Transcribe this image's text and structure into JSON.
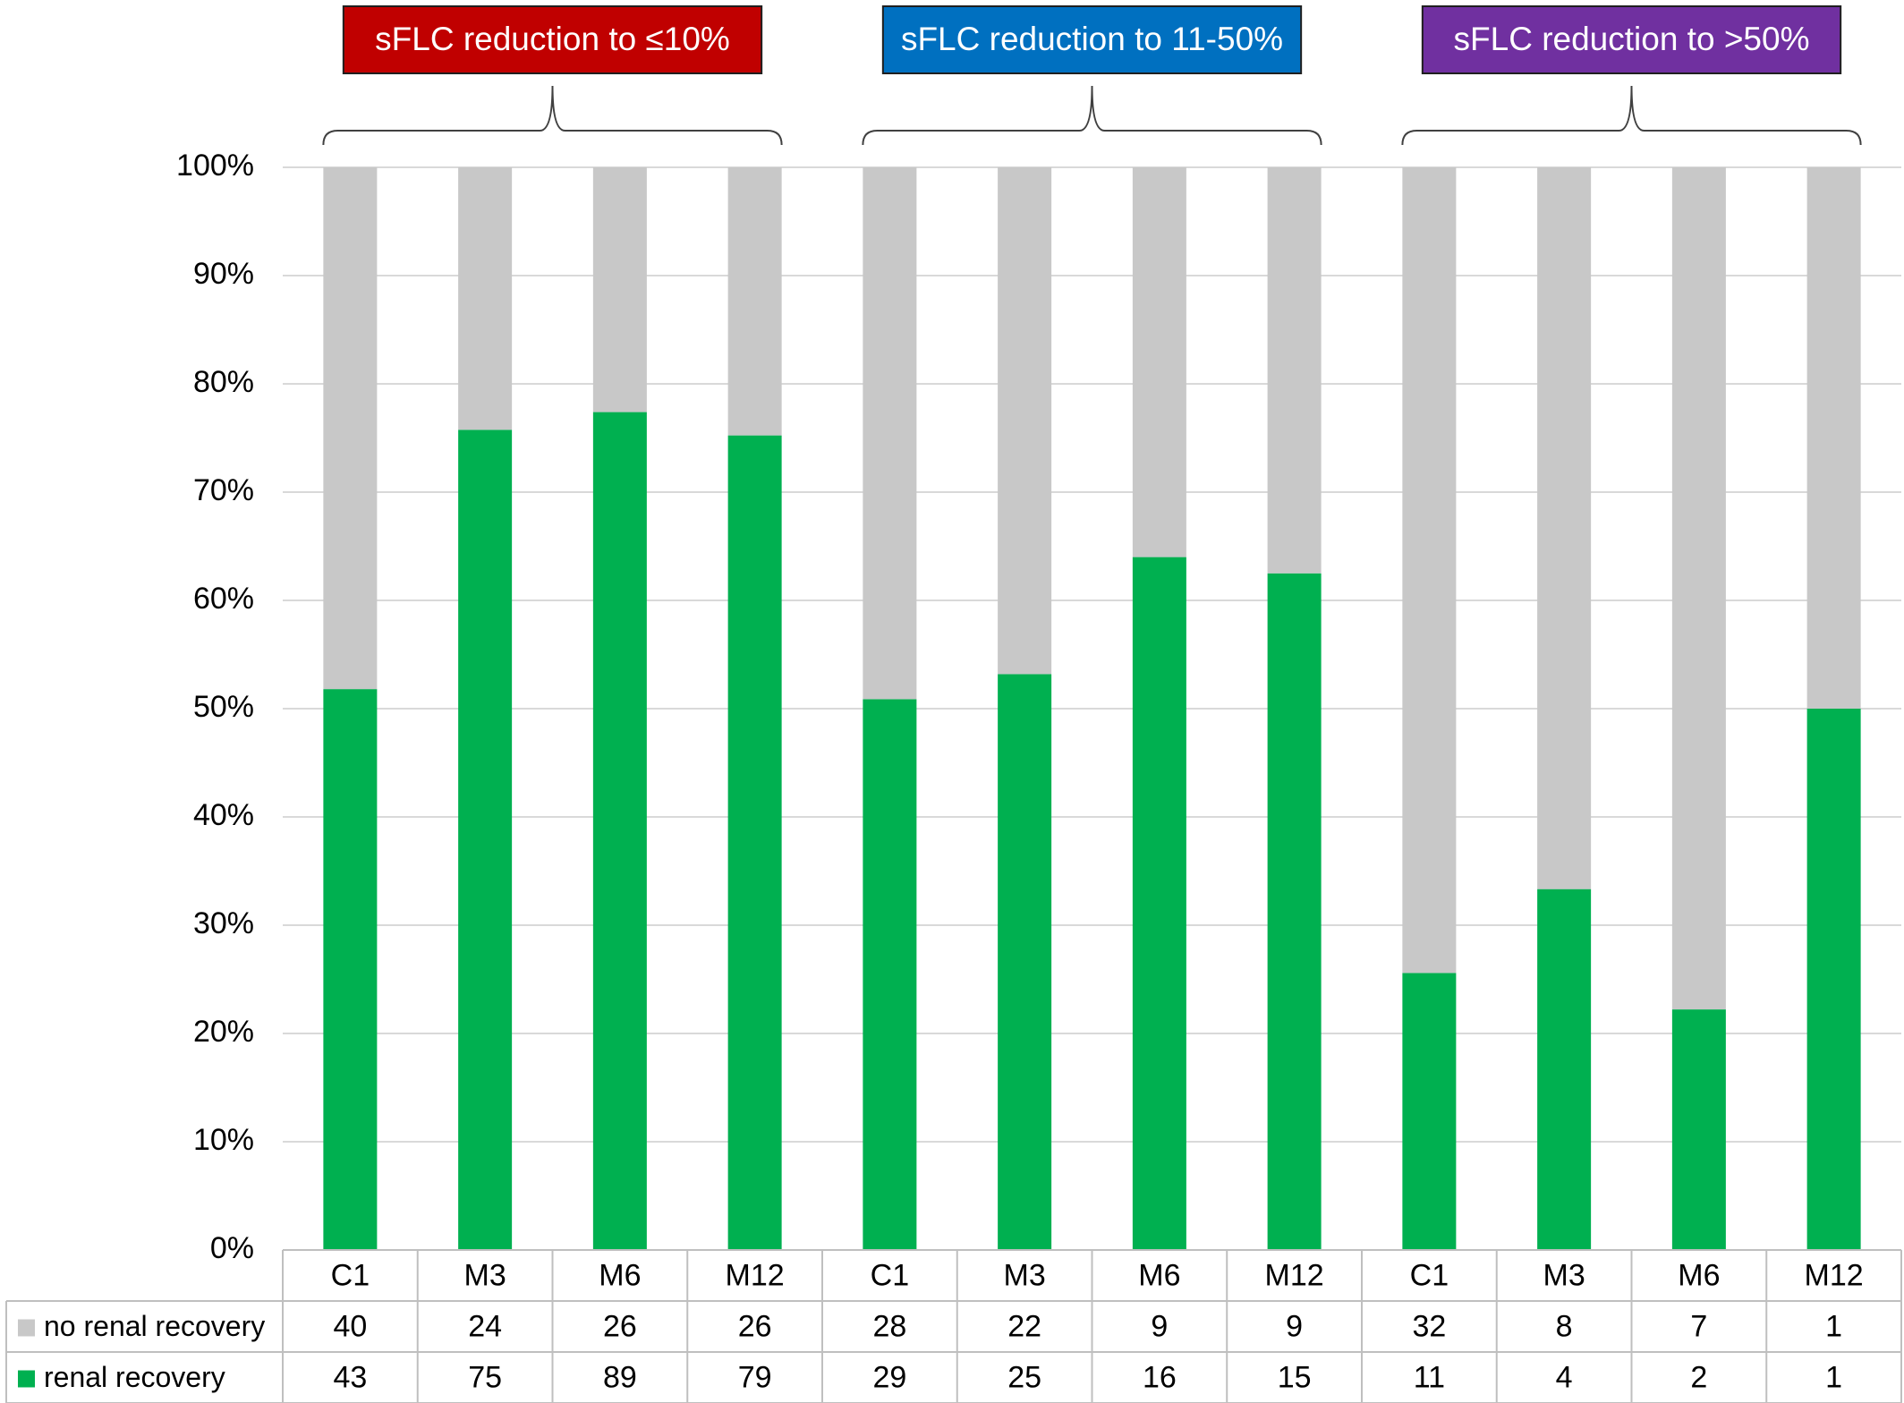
{
  "chart_data": {
    "type": "bar",
    "stacked": "percent",
    "categories": [
      "C1",
      "M3",
      "M6",
      "M12",
      "C1",
      "M3",
      "M6",
      "M12",
      "C1",
      "M3",
      "M6",
      "M12"
    ],
    "groups": [
      {
        "label": "sFLC reduction to ≤10%",
        "color": "#c00000"
      },
      {
        "label": "sFLC reduction to 11-50%",
        "color": "#0070c0"
      },
      {
        "label": "sFLC reduction to >50%",
        "color": "#7030a0"
      }
    ],
    "series": [
      {
        "name": "no renal recovery",
        "color": "#c8c8c8",
        "values": [
          40,
          24,
          26,
          26,
          28,
          22,
          9,
          9,
          32,
          8,
          7,
          1
        ]
      },
      {
        "name": "renal recovery",
        "color": "#00b050",
        "values": [
          43,
          75,
          89,
          79,
          29,
          25,
          16,
          15,
          11,
          4,
          2,
          1
        ]
      }
    ],
    "ylim": [
      0,
      100
    ],
    "yticks": [
      {
        "value": 0,
        "label": "0%"
      },
      {
        "value": 10,
        "label": "10%"
      },
      {
        "value": 20,
        "label": "20%"
      },
      {
        "value": 30,
        "label": "30%"
      },
      {
        "value": 40,
        "label": "40%"
      },
      {
        "value": 50,
        "label": "50%"
      },
      {
        "value": 60,
        "label": "60%"
      },
      {
        "value": 70,
        "label": "70%"
      },
      {
        "value": 80,
        "label": "80%"
      },
      {
        "value": 90,
        "label": "90%"
      },
      {
        "value": 100,
        "label": "100%"
      }
    ],
    "grid": true,
    "data_table": true
  }
}
